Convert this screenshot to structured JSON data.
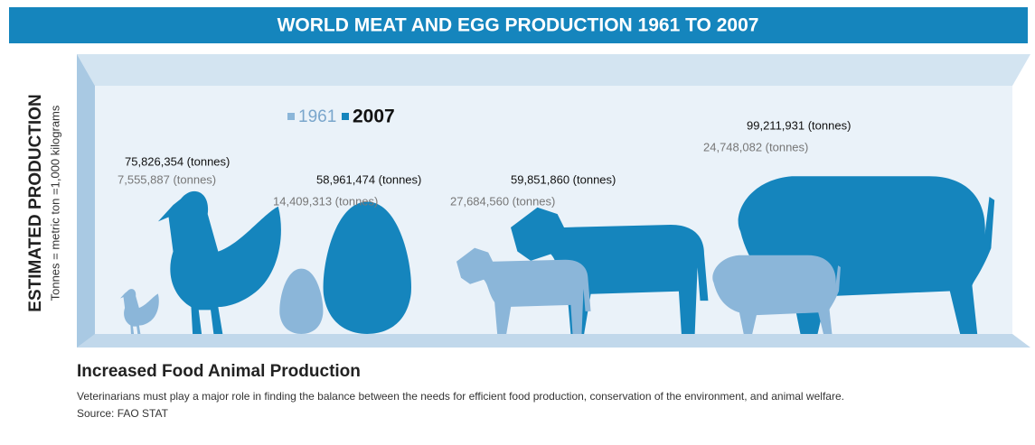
{
  "chart_data": {
    "type": "pictograph",
    "title": "WORLD MEAT AND EGG PRODUCTION 1961 TO 2007",
    "y_label": "ESTIMATED PRODUCTION",
    "y_note": "Tonnes = metric ton =1,000 kilograms",
    "series": [
      {
        "name": "1961",
        "color": "#8bb6d9",
        "values": [
          7555887,
          14409313,
          27684560,
          24748082
        ],
        "value_labels": [
          "7,555,887 (tonnes)",
          "14,409,313 (tonnes)",
          "27,684,560 (tonnes)",
          "24,748,082 (tonnes)"
        ]
      },
      {
        "name": "2007",
        "color": "#1585bd",
        "values": [
          75826354,
          58961474,
          59851860,
          99211931
        ],
        "value_labels": [
          "75,826,354 (tonnes)",
          "58,961,474 (tonnes)",
          "59,851,860 (tonnes)",
          "99,211,931 (tonnes)"
        ]
      }
    ],
    "subtitle": "Increased Food Animal Production",
    "caption": "Veterinarians must play a major role in finding the balance between the needs for efficient food production, conservation of the environment, and animal welfare.",
    "source": "Source: FAO STAT"
  }
}
